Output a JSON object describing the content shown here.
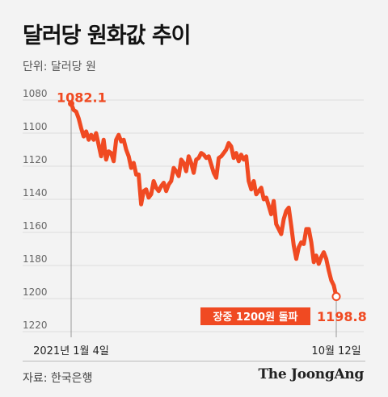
{
  "title": "달러당 원화값 추이",
  "unit_label": "단위: 달러당 원",
  "source": "자료: 한국은행",
  "brand": "The JoongAng",
  "colors": {
    "line": "#f04a22",
    "grid": "#dddddd",
    "background": "#f3f3f3"
  },
  "chart_data": {
    "type": "line",
    "title": "달러당 원화값 추이",
    "ylabel": "달러당 원",
    "y_inverted": true,
    "ylim": [
      1082,
      1220
    ],
    "yticks": [
      1080,
      1100,
      1120,
      1140,
      1160,
      1180,
      1200,
      1220
    ],
    "x_labels": {
      "start": "2021년 1월 4일",
      "end": "10월 12일"
    },
    "start_value_label": "1082.1",
    "end_value_label": "1198.8",
    "annotation": "장중 1200원 돌파",
    "grid": true,
    "values": [
      1082.1,
      1086,
      1087,
      1091,
      1097,
      1102,
      1099,
      1104,
      1101,
      1104,
      1100,
      1107,
      1114,
      1104,
      1116,
      1111,
      1112,
      1117,
      1104,
      1101,
      1105,
      1104,
      1110,
      1114,
      1121,
      1118,
      1125,
      1125,
      1143,
      1135,
      1134,
      1139,
      1137,
      1129,
      1133,
      1135,
      1132,
      1130,
      1135,
      1131,
      1129,
      1121,
      1123,
      1126,
      1116,
      1118,
      1123,
      1114,
      1118,
      1124,
      1116,
      1115,
      1112,
      1113,
      1115,
      1114,
      1119,
      1124,
      1127,
      1115,
      1114,
      1112,
      1110,
      1106,
      1108,
      1115,
      1112,
      1117,
      1113,
      1116,
      1114,
      1129,
      1134,
      1129,
      1137,
      1135,
      1133,
      1140,
      1139,
      1144,
      1149,
      1141,
      1155,
      1158,
      1161,
      1152,
      1147,
      1145,
      1156,
      1168,
      1176,
      1169,
      1166,
      1167,
      1158,
      1158,
      1166,
      1178,
      1174,
      1179,
      1175,
      1172,
      1176,
      1183,
      1189,
      1192,
      1198.8
    ]
  }
}
